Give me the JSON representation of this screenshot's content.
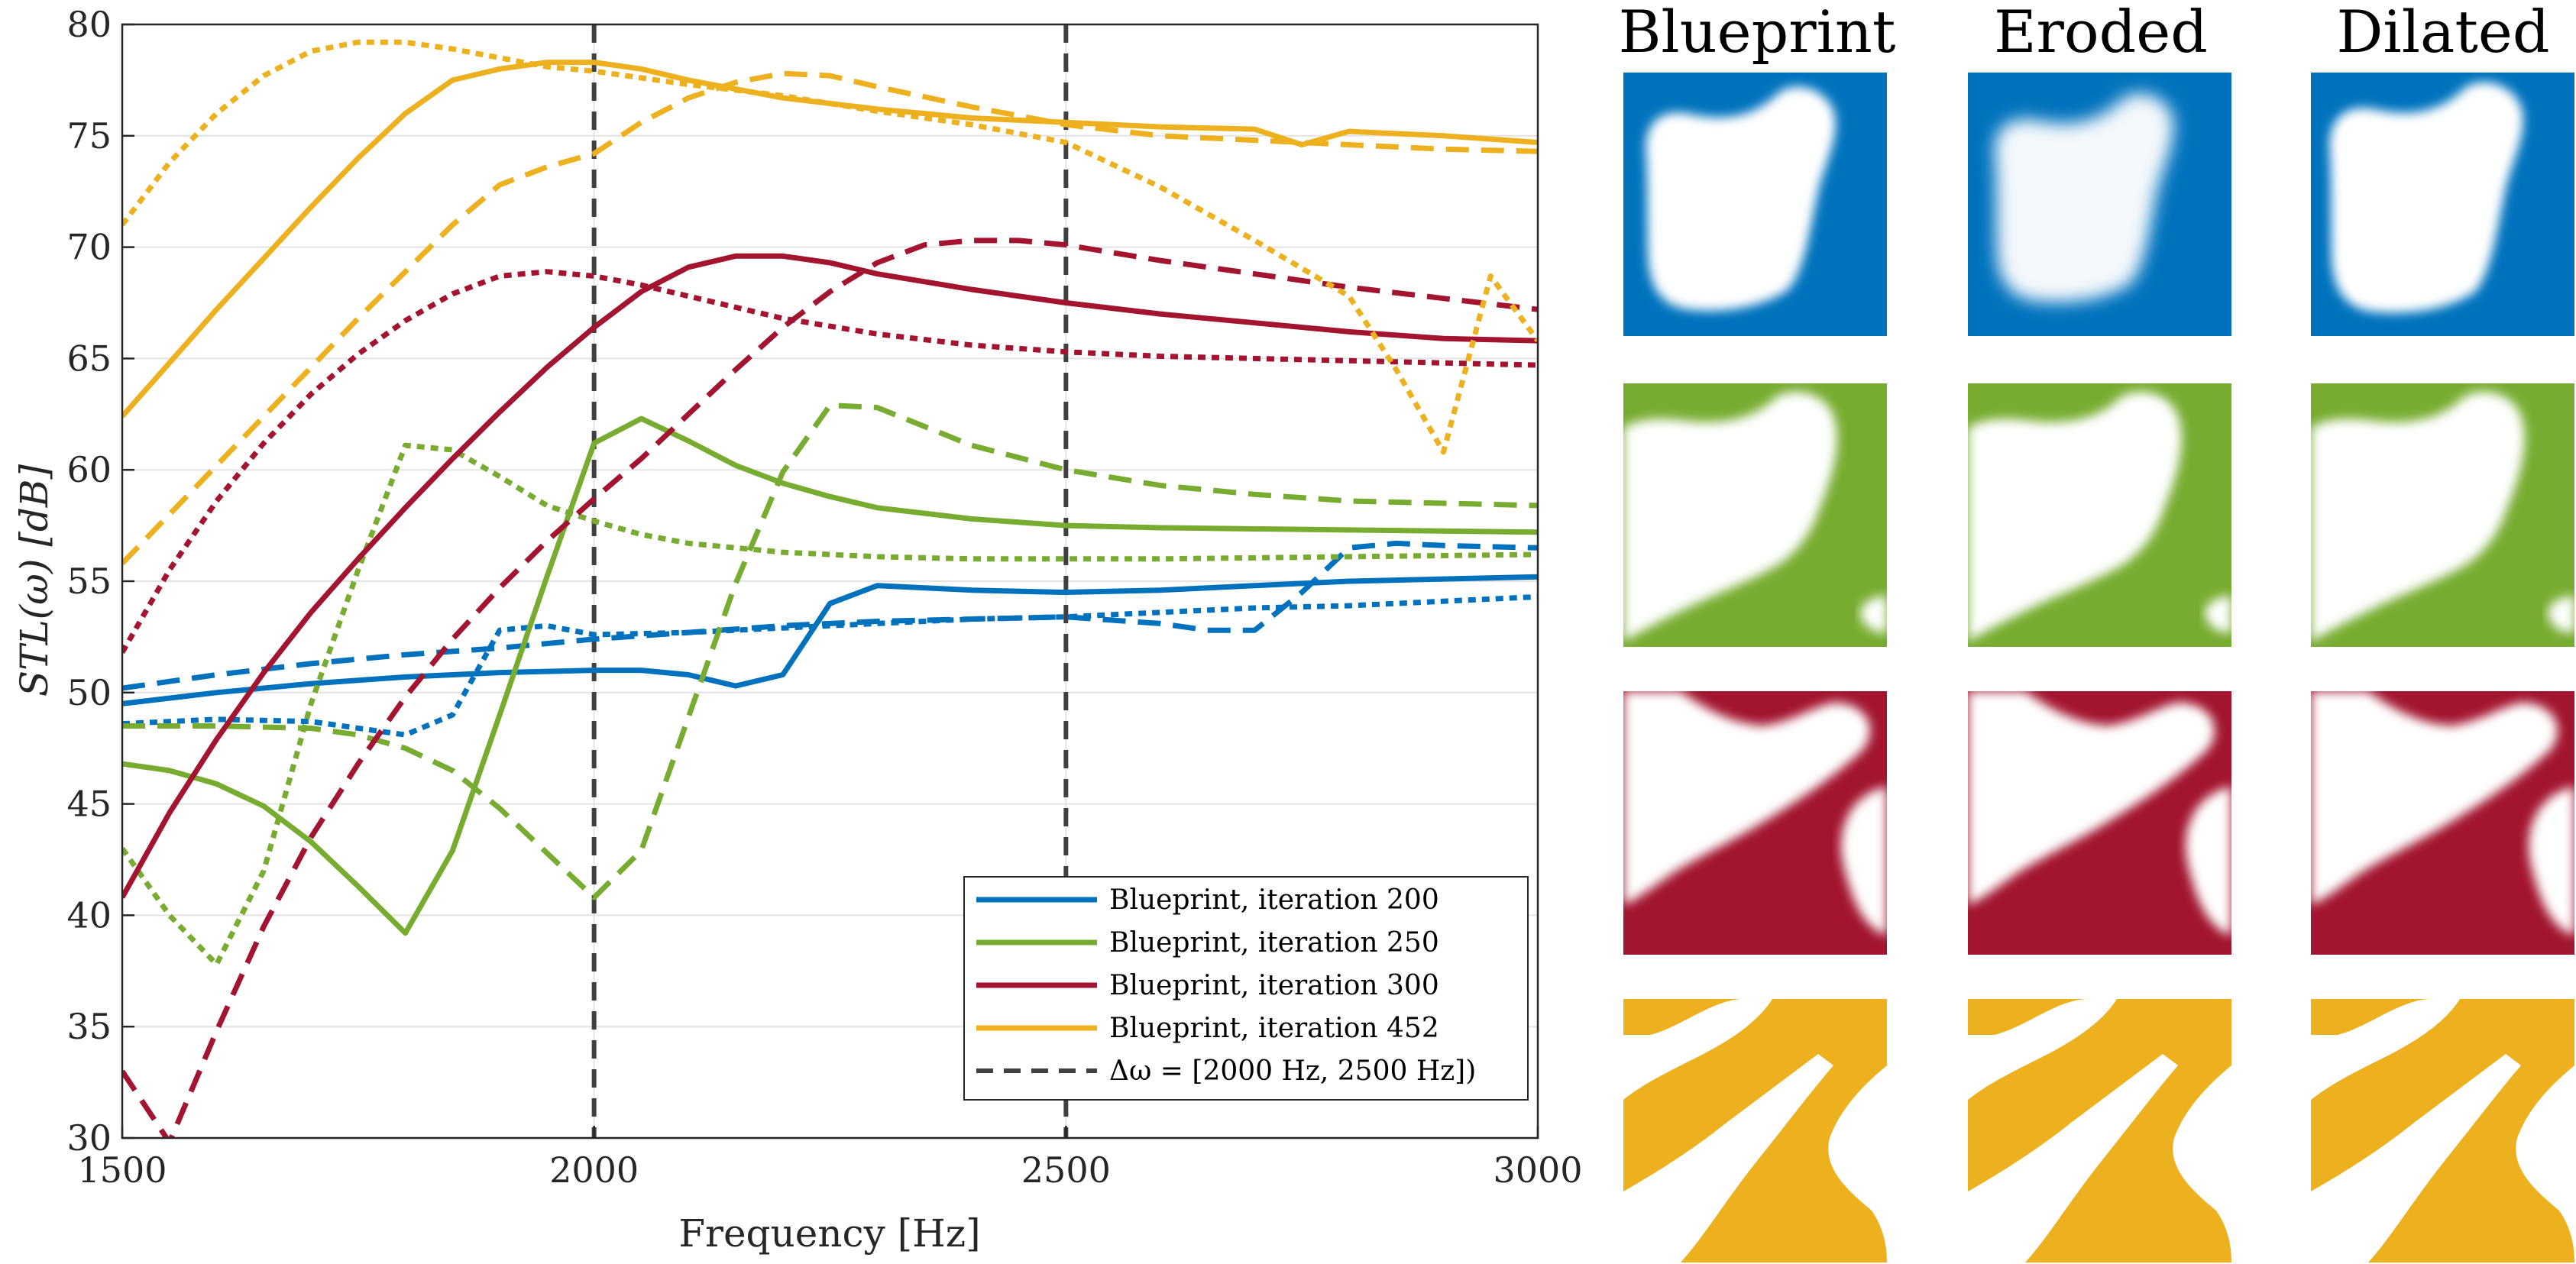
{
  "chart_data": {
    "type": "line",
    "xlabel": "Frequency [Hz]",
    "ylabel": "STL(ω) [dB]",
    "xlim": [
      1500,
      3000
    ],
    "ylim": [
      30,
      80
    ],
    "xticks": [
      "1500",
      "2000",
      "2500",
      "3000"
    ],
    "yticks": [
      "30",
      "35",
      "40",
      "45",
      "50",
      "55",
      "60",
      "65",
      "70",
      "75",
      "80"
    ],
    "grid": true,
    "legend_position": "bottom-right",
    "vlines": [
      2000,
      2500
    ],
    "colors": {
      "iter200": "#0072bd",
      "iter250": "#77ac30",
      "iter300": "#a2142f",
      "iter452": "#edb120",
      "band": "#404040"
    },
    "legend": [
      {
        "label": "Blueprint, iteration 200",
        "color": "#0072bd",
        "dash": "solid"
      },
      {
        "label": "Blueprint, iteration 250",
        "color": "#77ac30",
        "dash": "solid"
      },
      {
        "label": "Blueprint, iteration 300",
        "color": "#a2142f",
        "dash": "solid"
      },
      {
        "label": "Blueprint, iteration 452",
        "color": "#edb120",
        "dash": "solid"
      },
      {
        "label": "Δω = [2000 Hz, 2500 Hz])",
        "color": "#404040",
        "dash": "dashed"
      }
    ],
    "series": [
      {
        "name": "iteration 200 blueprint",
        "color": "#0072bd",
        "dash": "solid",
        "x": [
          1500,
          1600,
          1700,
          1800,
          1900,
          2000,
          2050,
          2100,
          2150,
          2200,
          2250,
          2300,
          2400,
          2500,
          2600,
          2700,
          2800,
          2900,
          3000
        ],
        "y": [
          49.5,
          50.0,
          50.4,
          50.7,
          50.9,
          51.0,
          51.0,
          50.8,
          50.3,
          50.8,
          54.0,
          54.8,
          54.6,
          54.5,
          54.6,
          54.8,
          55.0,
          55.1,
          55.2
        ]
      },
      {
        "name": "iteration 200 eroded",
        "color": "#0072bd",
        "dash": "dashed",
        "x": [
          1500,
          1600,
          1700,
          1800,
          1900,
          1950,
          2000,
          2100,
          2200,
          2300,
          2400,
          2500,
          2600,
          2650,
          2700,
          2750,
          2800,
          2850,
          2900,
          3000
        ],
        "y": [
          50.2,
          50.8,
          51.3,
          51.7,
          52.0,
          52.2,
          52.4,
          52.7,
          53.0,
          53.2,
          53.3,
          53.4,
          53.1,
          52.8,
          52.8,
          54.5,
          56.5,
          56.7,
          56.6,
          56.5
        ]
      },
      {
        "name": "iteration 200 dilated",
        "color": "#0072bd",
        "dash": "dotted",
        "x": [
          1500,
          1600,
          1700,
          1800,
          1850,
          1900,
          1950,
          2000,
          2100,
          2200,
          2300,
          2400,
          2500,
          2600,
          2700,
          2800,
          2900,
          3000
        ],
        "y": [
          48.6,
          48.8,
          48.7,
          48.1,
          49.0,
          52.8,
          53.0,
          52.6,
          52.7,
          52.9,
          53.1,
          53.3,
          53.4,
          53.6,
          53.8,
          53.9,
          54.1,
          54.3
        ]
      },
      {
        "name": "iteration 250 blueprint",
        "color": "#77ac30",
        "dash": "solid",
        "x": [
          1500,
          1550,
          1600,
          1650,
          1700,
          1750,
          1800,
          1850,
          1900,
          1950,
          2000,
          2050,
          2100,
          2150,
          2200,
          2250,
          2300,
          2400,
          2500,
          2600,
          2800,
          3000
        ],
        "y": [
          46.8,
          46.5,
          45.9,
          44.9,
          43.3,
          41.3,
          39.2,
          42.9,
          49.0,
          55.2,
          61.2,
          62.3,
          61.3,
          60.2,
          59.4,
          58.8,
          58.3,
          57.8,
          57.5,
          57.4,
          57.3,
          57.2
        ]
      },
      {
        "name": "iteration 250 eroded",
        "color": "#77ac30",
        "dash": "dashed",
        "x": [
          1500,
          1600,
          1700,
          1750,
          1800,
          1850,
          1900,
          1950,
          2000,
          2050,
          2100,
          2150,
          2200,
          2250,
          2300,
          2400,
          2500,
          2600,
          2700,
          2800,
          3000
        ],
        "y": [
          48.5,
          48.5,
          48.4,
          48.1,
          47.5,
          46.5,
          44.8,
          42.8,
          40.8,
          42.9,
          48.9,
          54.9,
          59.9,
          62.9,
          62.8,
          61.1,
          60.0,
          59.3,
          58.9,
          58.6,
          58.4
        ]
      },
      {
        "name": "iteration 250 dilated",
        "color": "#77ac30",
        "dash": "dotted",
        "x": [
          1500,
          1550,
          1600,
          1650,
          1700,
          1750,
          1800,
          1850,
          1900,
          1950,
          2000,
          2050,
          2100,
          2200,
          2300,
          2400,
          2500,
          2600,
          2800,
          3000
        ],
        "y": [
          43.0,
          40.0,
          37.8,
          42.0,
          49.5,
          55.5,
          61.1,
          60.9,
          59.7,
          58.4,
          57.7,
          57.1,
          56.7,
          56.3,
          56.1,
          56.0,
          56.0,
          56.0,
          56.1,
          56.2
        ]
      },
      {
        "name": "iteration 300 blueprint",
        "color": "#a2142f",
        "dash": "solid",
        "x": [
          1500,
          1550,
          1600,
          1650,
          1700,
          1750,
          1800,
          1850,
          1900,
          1950,
          2000,
          2050,
          2100,
          2150,
          2200,
          2250,
          2300,
          2400,
          2500,
          2600,
          2700,
          2800,
          2900,
          3000
        ],
        "y": [
          40.8,
          44.6,
          47.9,
          50.9,
          53.6,
          56.0,
          58.3,
          60.5,
          62.6,
          64.6,
          66.4,
          68.0,
          69.1,
          69.6,
          69.6,
          69.3,
          68.8,
          68.1,
          67.5,
          67.0,
          66.6,
          66.2,
          65.9,
          65.8
        ]
      },
      {
        "name": "iteration 300 eroded",
        "color": "#a2142f",
        "dash": "dashed",
        "x": [
          1500,
          1550,
          1600,
          1650,
          1700,
          1750,
          1800,
          1850,
          1900,
          1950,
          2000,
          2050,
          2100,
          2150,
          2200,
          2250,
          2300,
          2350,
          2400,
          2450,
          2500,
          2600,
          2700,
          2800,
          2900,
          3000
        ],
        "y": [
          33.0,
          29.8,
          34.8,
          39.5,
          43.5,
          46.8,
          49.8,
          52.4,
          54.7,
          56.8,
          58.7,
          60.5,
          62.5,
          64.5,
          66.4,
          68.0,
          69.3,
          70.1,
          70.3,
          70.3,
          70.1,
          69.4,
          68.8,
          68.2,
          67.7,
          67.2
        ]
      },
      {
        "name": "iteration 300 dilated",
        "color": "#a2142f",
        "dash": "dotted",
        "x": [
          1500,
          1550,
          1600,
          1650,
          1700,
          1750,
          1800,
          1850,
          1900,
          1950,
          2000,
          2050,
          2100,
          2200,
          2300,
          2400,
          2500,
          2600,
          2700,
          2800,
          2900,
          3000
        ],
        "y": [
          51.8,
          55.5,
          58.6,
          61.2,
          63.4,
          65.2,
          66.7,
          67.9,
          68.7,
          68.9,
          68.7,
          68.3,
          67.8,
          66.8,
          66.1,
          65.6,
          65.3,
          65.1,
          65.0,
          64.9,
          64.8,
          64.7
        ]
      },
      {
        "name": "iteration 452 blueprint",
        "color": "#edb120",
        "dash": "solid",
        "x": [
          1500,
          1550,
          1600,
          1650,
          1700,
          1750,
          1800,
          1850,
          1900,
          1950,
          2000,
          2050,
          2100,
          2200,
          2300,
          2400,
          2500,
          2600,
          2700,
          2750,
          2800,
          2900,
          3000
        ],
        "y": [
          62.4,
          64.8,
          67.2,
          69.5,
          71.8,
          74.0,
          76.0,
          77.5,
          78.0,
          78.3,
          78.3,
          78.0,
          77.5,
          76.7,
          76.2,
          75.8,
          75.6,
          75.4,
          75.3,
          74.6,
          75.2,
          75.0,
          74.7
        ]
      },
      {
        "name": "iteration 452 eroded",
        "color": "#edb120",
        "dash": "dashed",
        "x": [
          1500,
          1550,
          1600,
          1650,
          1700,
          1750,
          1800,
          1850,
          1900,
          1950,
          2000,
          2050,
          2100,
          2150,
          2200,
          2250,
          2300,
          2400,
          2500,
          2600,
          2700,
          2800,
          2900,
          3000
        ],
        "y": [
          55.8,
          58.0,
          60.2,
          62.4,
          64.6,
          66.8,
          68.9,
          71.0,
          72.8,
          73.6,
          74.2,
          75.6,
          76.7,
          77.4,
          77.8,
          77.7,
          77.2,
          76.3,
          75.5,
          75.0,
          74.8,
          74.6,
          74.4,
          74.3
        ]
      },
      {
        "name": "iteration 452 dilated",
        "color": "#edb120",
        "dash": "dotted",
        "x": [
          1500,
          1550,
          1600,
          1650,
          1700,
          1750,
          1800,
          1850,
          1900,
          1950,
          2000,
          2100,
          2200,
          2300,
          2400,
          2500,
          2600,
          2700,
          2800,
          2850,
          2900,
          2950,
          3000
        ],
        "y": [
          71.0,
          73.8,
          76.0,
          77.7,
          78.8,
          79.2,
          79.2,
          78.9,
          78.5,
          78.1,
          77.9,
          77.3,
          76.8,
          76.1,
          75.5,
          74.7,
          72.7,
          70.3,
          67.8,
          64.5,
          60.8,
          68.7,
          65.8
        ]
      }
    ]
  },
  "panels": {
    "column_titles": [
      "Blueprint",
      "Eroded",
      "Dilated"
    ],
    "rows": [
      {
        "iteration": "200",
        "color": "#0072bd"
      },
      {
        "iteration": "250",
        "color": "#77ac30"
      },
      {
        "iteration": "300",
        "color": "#a2142f"
      },
      {
        "iteration": "452",
        "color": "#edb120"
      }
    ]
  }
}
